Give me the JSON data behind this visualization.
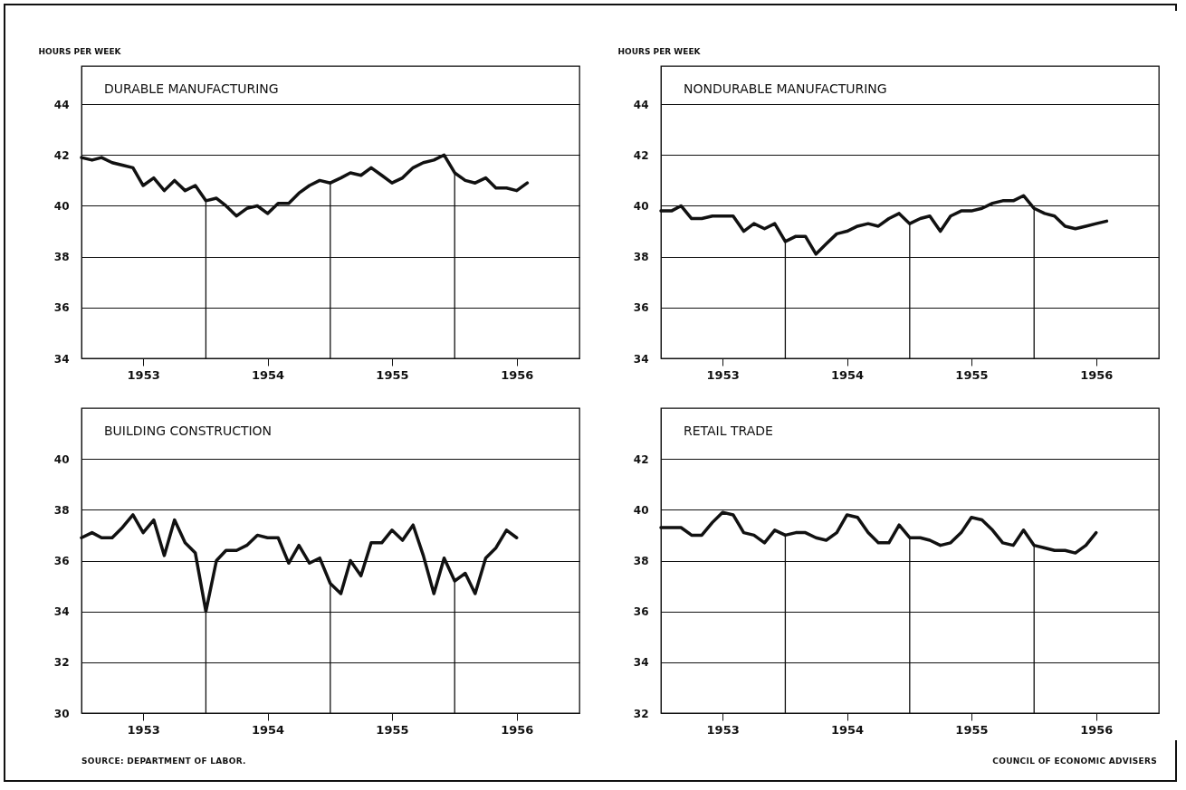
{
  "chart_data": [
    {
      "type": "line",
      "title": "DURABLE MANUFACTURING",
      "ylabel": "HOURS PER WEEK",
      "xlim": [
        "1953-01",
        "1957-01"
      ],
      "ylim": [
        34,
        45.5
      ],
      "yticks": [
        34,
        36,
        38,
        40,
        42,
        44
      ],
      "xticks": [
        {
          "value": "1953-07",
          "label": "1953"
        },
        {
          "value": "1954-07",
          "label": "1954"
        },
        {
          "value": "1955-07",
          "label": "1955"
        },
        {
          "value": "1956-07",
          "label": "1956"
        }
      ],
      "grid": "y",
      "ref_lines": [
        {
          "axis": "x",
          "value": "1954-01"
        },
        {
          "axis": "x",
          "value": "1955-01"
        },
        {
          "axis": "x",
          "value": "1956-01"
        }
      ],
      "x": [
        "1953-01",
        "1953-02",
        "1953-03",
        "1953-04",
        "1953-05",
        "1953-06",
        "1953-07",
        "1953-08",
        "1953-09",
        "1953-10",
        "1953-11",
        "1953-12",
        "1954-01",
        "1954-02",
        "1954-03",
        "1954-04",
        "1954-05",
        "1954-06",
        "1954-07",
        "1954-08",
        "1954-09",
        "1954-10",
        "1954-11",
        "1954-12",
        "1955-01",
        "1955-02",
        "1955-03",
        "1955-04",
        "1955-05",
        "1955-06",
        "1955-07",
        "1955-08",
        "1955-09",
        "1955-10",
        "1955-11",
        "1955-12",
        "1956-01",
        "1956-02",
        "1956-03",
        "1956-04",
        "1956-05",
        "1956-06",
        "1956-07",
        "1956-08"
      ],
      "series": [
        {
          "color": "#111111",
          "values": [
            41.9,
            41.8,
            41.9,
            41.7,
            41.6,
            41.5,
            40.8,
            41.1,
            40.6,
            41.0,
            40.6,
            40.8,
            40.2,
            40.3,
            40.0,
            39.6,
            39.9,
            40.0,
            39.7,
            40.1,
            40.1,
            40.5,
            40.8,
            41.0,
            40.9,
            41.1,
            41.3,
            41.2,
            41.5,
            41.2,
            40.9,
            41.1,
            41.5,
            41.7,
            41.8,
            42.0,
            41.3,
            41.0,
            40.9,
            41.1,
            40.7,
            40.7,
            40.6,
            40.9
          ]
        }
      ]
    },
    {
      "type": "line",
      "title": "NONDURABLE MANUFACTURING",
      "ylabel": "HOURS PER WEEK",
      "xlim": [
        "1953-01",
        "1957-01"
      ],
      "ylim": [
        34,
        45.5
      ],
      "yticks": [
        34,
        36,
        38,
        40,
        42,
        44
      ],
      "xticks": [
        {
          "value": "1953-07",
          "label": "1953"
        },
        {
          "value": "1954-07",
          "label": "1954"
        },
        {
          "value": "1955-07",
          "label": "1955"
        },
        {
          "value": "1956-07",
          "label": "1956"
        }
      ],
      "grid": "y",
      "ref_lines": [
        {
          "axis": "x",
          "value": "1954-01"
        },
        {
          "axis": "x",
          "value": "1955-01"
        },
        {
          "axis": "x",
          "value": "1956-01"
        }
      ],
      "x": [
        "1953-01",
        "1953-02",
        "1953-03",
        "1953-04",
        "1953-05",
        "1953-06",
        "1953-07",
        "1953-08",
        "1953-09",
        "1953-10",
        "1953-11",
        "1953-12",
        "1954-01",
        "1954-02",
        "1954-03",
        "1954-04",
        "1954-05",
        "1954-06",
        "1954-07",
        "1954-08",
        "1954-09",
        "1954-10",
        "1954-11",
        "1954-12",
        "1955-01",
        "1955-02",
        "1955-03",
        "1955-04",
        "1955-05",
        "1955-06",
        "1955-07",
        "1955-08",
        "1955-09",
        "1955-10",
        "1955-11",
        "1955-12",
        "1956-01",
        "1956-02",
        "1956-03",
        "1956-04",
        "1956-05",
        "1956-06",
        "1956-07",
        "1956-08"
      ],
      "series": [
        {
          "color": "#111111",
          "values": [
            39.8,
            39.8,
            40.0,
            39.5,
            39.5,
            39.6,
            39.6,
            39.6,
            39.0,
            39.3,
            39.1,
            39.3,
            38.6,
            38.8,
            38.8,
            38.1,
            38.5,
            38.9,
            39.0,
            39.2,
            39.3,
            39.2,
            39.5,
            39.7,
            39.3,
            39.5,
            39.6,
            39.0,
            39.6,
            39.8,
            39.8,
            39.9,
            40.1,
            40.2,
            40.2,
            40.4,
            39.9,
            39.7,
            39.6,
            39.2,
            39.1,
            39.2,
            39.3,
            39.4
          ]
        }
      ]
    },
    {
      "type": "line",
      "title": "BUILDING CONSTRUCTION",
      "xlim": [
        "1953-01",
        "1957-01"
      ],
      "ylim": [
        30,
        42
      ],
      "yticks": [
        30,
        32,
        34,
        36,
        38,
        40
      ],
      "xticks": [
        {
          "value": "1953-07",
          "label": "1953"
        },
        {
          "value": "1954-07",
          "label": "1954"
        },
        {
          "value": "1955-07",
          "label": "1955"
        },
        {
          "value": "1956-07",
          "label": "1956"
        }
      ],
      "grid": "y",
      "ref_lines": [
        {
          "axis": "x",
          "value": "1954-01"
        },
        {
          "axis": "x",
          "value": "1955-01"
        },
        {
          "axis": "x",
          "value": "1956-01"
        }
      ],
      "annotations": [
        "SOURCE: DEPARTMENT OF LABOR."
      ],
      "x": [
        "1953-01",
        "1953-02",
        "1953-03",
        "1953-04",
        "1953-05",
        "1953-06",
        "1953-07",
        "1953-08",
        "1953-09",
        "1953-10",
        "1953-11",
        "1953-12",
        "1954-01",
        "1954-02",
        "1954-03",
        "1954-04",
        "1954-05",
        "1954-06",
        "1954-07",
        "1954-08",
        "1954-09",
        "1954-10",
        "1954-11",
        "1954-12",
        "1955-01",
        "1955-02",
        "1955-03",
        "1955-04",
        "1955-05",
        "1955-06",
        "1955-07",
        "1955-08",
        "1955-09",
        "1955-10",
        "1955-11",
        "1955-12",
        "1956-01",
        "1956-02",
        "1956-03",
        "1956-04",
        "1956-05",
        "1956-06",
        "1956-07"
      ],
      "series": [
        {
          "color": "#111111",
          "values": [
            36.9,
            37.1,
            36.9,
            36.9,
            37.3,
            37.8,
            37.1,
            37.6,
            36.2,
            37.6,
            36.7,
            36.3,
            34.0,
            36.0,
            36.4,
            36.4,
            36.6,
            37.0,
            36.9,
            36.9,
            35.9,
            36.6,
            35.9,
            36.1,
            35.1,
            34.7,
            36.0,
            35.4,
            36.7,
            36.7,
            37.2,
            36.8,
            37.4,
            36.2,
            34.7,
            36.1,
            35.2,
            35.5,
            34.7,
            36.1,
            36.5,
            37.2,
            36.9
          ]
        }
      ]
    },
    {
      "type": "line",
      "title": "RETAIL TRADE",
      "xlim": [
        "1953-01",
        "1957-01"
      ],
      "ylim": [
        32,
        44
      ],
      "yticks": [
        32,
        34,
        36,
        38,
        40,
        42
      ],
      "xticks": [
        {
          "value": "1953-07",
          "label": "1953"
        },
        {
          "value": "1954-07",
          "label": "1954"
        },
        {
          "value": "1955-07",
          "label": "1955"
        },
        {
          "value": "1956-07",
          "label": "1956"
        }
      ],
      "grid": "y",
      "ref_lines": [
        {
          "axis": "x",
          "value": "1954-01"
        },
        {
          "axis": "x",
          "value": "1955-01"
        },
        {
          "axis": "x",
          "value": "1956-01"
        }
      ],
      "annotations": [
        "COUNCIL OF ECONOMIC ADVISERS"
      ],
      "x": [
        "1953-01",
        "1953-02",
        "1953-03",
        "1953-04",
        "1953-05",
        "1953-06",
        "1953-07",
        "1953-08",
        "1953-09",
        "1953-10",
        "1953-11",
        "1953-12",
        "1954-01",
        "1954-02",
        "1954-03",
        "1954-04",
        "1954-05",
        "1954-06",
        "1954-07",
        "1954-08",
        "1954-09",
        "1954-10",
        "1954-11",
        "1954-12",
        "1955-01",
        "1955-02",
        "1955-03",
        "1955-04",
        "1955-05",
        "1955-06",
        "1955-07",
        "1955-08",
        "1955-09",
        "1955-10",
        "1955-11",
        "1955-12",
        "1956-01",
        "1956-02",
        "1956-03",
        "1956-04",
        "1956-05",
        "1956-06",
        "1956-07"
      ],
      "series": [
        {
          "color": "#111111",
          "values": [
            39.3,
            39.3,
            39.3,
            39.0,
            39.0,
            39.5,
            39.9,
            39.8,
            39.1,
            39.0,
            38.7,
            39.2,
            39.0,
            39.1,
            39.1,
            38.9,
            38.8,
            39.1,
            39.8,
            39.7,
            39.1,
            38.7,
            38.7,
            39.4,
            38.9,
            38.9,
            38.8,
            38.6,
            38.7,
            39.1,
            39.7,
            39.6,
            39.2,
            38.7,
            38.6,
            39.2,
            38.6,
            38.5,
            38.4,
            38.4,
            38.3,
            38.6,
            39.1
          ]
        }
      ]
    }
  ]
}
